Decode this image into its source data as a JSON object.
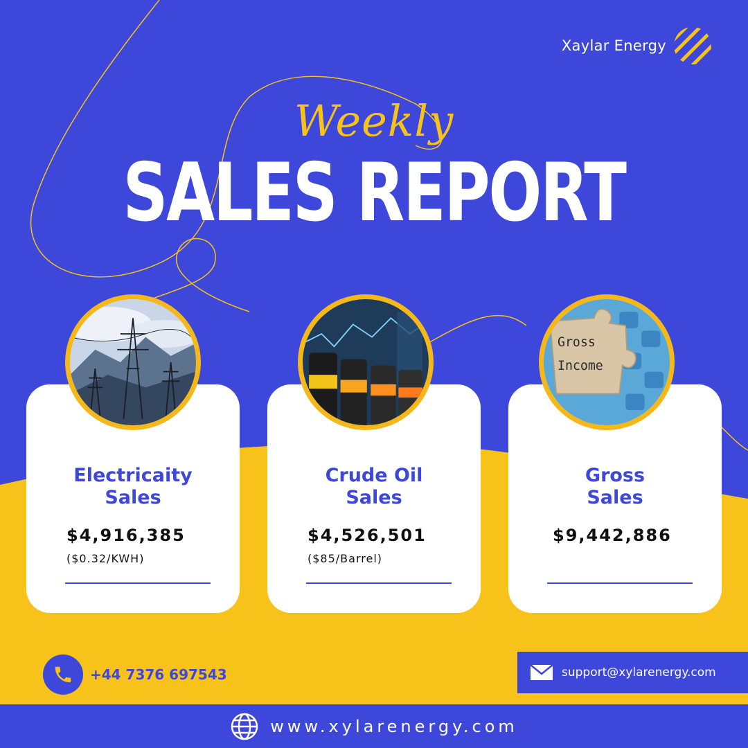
{
  "brand": {
    "name": "Xaylar Energy",
    "logo_icon": "striped-circle-logo"
  },
  "title": {
    "script": "Weekly",
    "main": "SALES REPORT"
  },
  "colors": {
    "blue": "#3d47d9",
    "yellow": "#f7c21a",
    "white": "#ffffff"
  },
  "cards": [
    {
      "image_icon": "power-lines-photo",
      "title_line1": "Electricaity",
      "title_line2": "Sales",
      "value": "$4,916,385",
      "sub": "($0.32/KWH)"
    },
    {
      "image_icon": "oil-barrels-photo",
      "title_line1": "Crude Oil",
      "title_line2": "Sales",
      "value": "$4,526,501",
      "sub": "($85/Barrel)"
    },
    {
      "image_icon": "gross-income-puzzle-photo",
      "title_line1": "Gross",
      "title_line2": "Sales",
      "value": "$9,442,886",
      "sub": ""
    }
  ],
  "photo_texts": {
    "puzzle_line1": "Gross",
    "puzzle_line2": "Income"
  },
  "contact": {
    "phone": "+44 7376 697543",
    "email": "support@xylarenergy.com",
    "website": "www.xylarenergy.com"
  }
}
